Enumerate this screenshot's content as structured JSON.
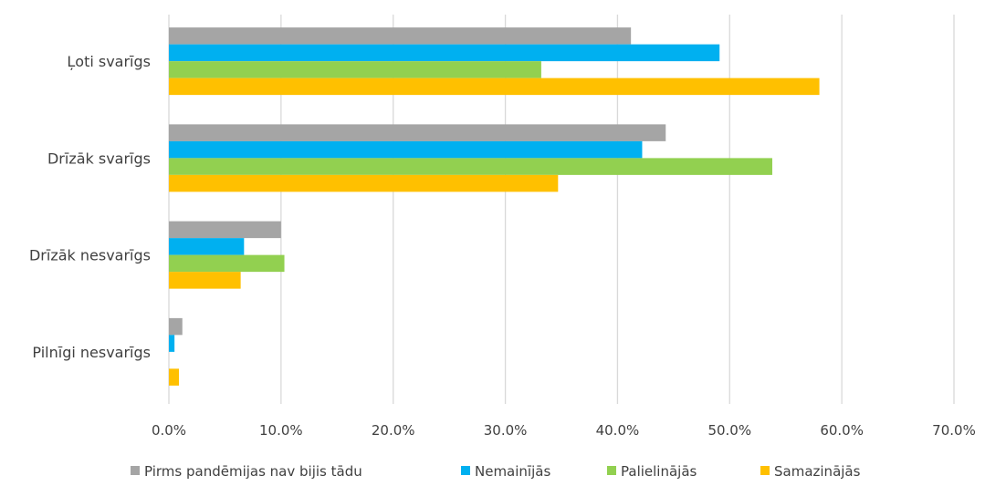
{
  "chart_data": {
    "type": "bar",
    "orientation": "horizontal",
    "categories": [
      "Ļoti svarīgs",
      "Drīzāk svarīgs",
      "Drīzāk nesvarīgs",
      "Pilnīgi nesvarīgs"
    ],
    "series": [
      {
        "name": "Pirms pandēmijas nav bijis tādu",
        "color": "#a5a5a5",
        "values": [
          41.2,
          44.3,
          10.0,
          1.2
        ]
      },
      {
        "name": "Nemainījās",
        "color": "#00b0f0",
        "values": [
          49.1,
          42.2,
          6.7,
          0.5
        ]
      },
      {
        "name": "Palielinājās",
        "color": "#92d050",
        "values": [
          33.2,
          53.8,
          10.3,
          0.0
        ]
      },
      {
        "name": "Samazinājās",
        "color": "#ffc000",
        "values": [
          58.0,
          34.7,
          6.4,
          0.9
        ]
      }
    ],
    "xlim": [
      0,
      70
    ],
    "xticks": [
      "0.0%",
      "10.0%",
      "20.0%",
      "30.0%",
      "40.0%",
      "50.0%",
      "60.0%",
      "70.0%"
    ],
    "grid": true,
    "legend_position": "bottom"
  }
}
